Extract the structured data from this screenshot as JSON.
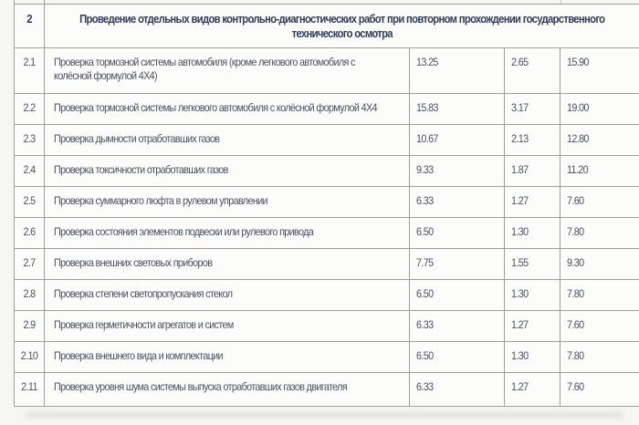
{
  "table": {
    "header": {
      "num": "2",
      "title": "Проведение отдельных видов контрольно-диагностических работ при повторном прохождении государственного\nтехнического осмотра"
    },
    "rows": [
      {
        "num": "2.1",
        "desc": "Проверка тормозной системы автомобиля (кроме легкового автомобиля с\nколёсной формулой 4Х4)",
        "v1": "13.25",
        "v2": "2.65",
        "v3": "15.90"
      },
      {
        "num": "2.2",
        "desc": "Проверка тормозной системы легкового автомобиля с колёсной формулой 4Х4",
        "v1": "15.83",
        "v2": "3.17",
        "v3": "19.00"
      },
      {
        "num": "2.3",
        "desc": "Проверка дымности отработавших газов",
        "v1": "10.67",
        "v2": "2.13",
        "v3": "12.80"
      },
      {
        "num": "2.4",
        "desc": "Проверка токсичности отработавших газов",
        "v1": "9.33",
        "v2": "1.87",
        "v3": "11.20"
      },
      {
        "num": "2.5",
        "desc": "Проверка суммарного люфта в рулевом управлении",
        "v1": "6.33",
        "v2": "1.27",
        "v3": "7.60"
      },
      {
        "num": "2.6",
        "desc": "Проверка состояния элементов подвески или рулевого привода",
        "v1": "6.50",
        "v2": "1.30",
        "v3": "7.80"
      },
      {
        "num": "2.7",
        "desc": "Проверка внешних световых приборов",
        "v1": "7.75",
        "v2": "1.55",
        "v3": "9.30"
      },
      {
        "num": "2.8",
        "desc": "Проверка степени светопропускания стекол",
        "v1": "6.50",
        "v2": "1.30",
        "v3": "7.80"
      },
      {
        "num": "2.9",
        "desc": "Проверка герметичности агрегатов и систем",
        "v1": "6.33",
        "v2": "1.27",
        "v3": "7.60"
      },
      {
        "num": "2.10",
        "desc": "Проверка внешнего вида и комплектации",
        "v1": "6.50",
        "v2": "1.30",
        "v3": "7.80"
      },
      {
        "num": "2.11",
        "desc": "Проверка уровня шума системы выпуска отработавших газов двигателя",
        "v1": "6.33",
        "v2": "1.27",
        "v3": "7.60"
      }
    ],
    "colors": {
      "body_text": "#4a5166",
      "header_text": "#323d5d",
      "border": "#9e9e9e",
      "page_background": "#f6f6f4",
      "cell_background": "#fcfcfb"
    }
  }
}
